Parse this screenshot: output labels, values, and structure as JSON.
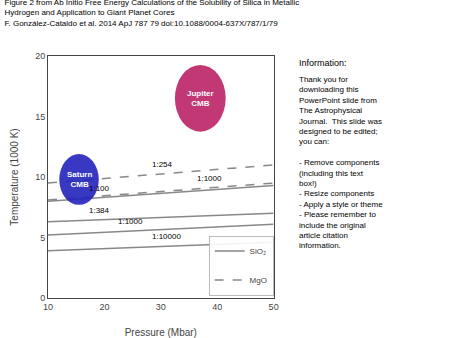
{
  "chart_data": {
    "type": "line",
    "title": "Figure 2 from Ab Initio Free Energy Calculations of the Solubility of Silica in Metallic Hydrogen and Application to Giant Planet Cores",
    "subtitle": "F. González-Cataldo et al. 2014 ApJ 787 79 doi:10.1088/0004-637X/787/1/79",
    "x_label": "Pressure (Mbar)",
    "y_label": "Temperature (1000 K)",
    "x": [
      10,
      50
    ],
    "series": [
      {
        "name": "SiO₂",
        "color": "#888888",
        "line_style": "solid",
        "values": [
          8.0,
          9.3
        ]
      },
      {
        "name": "SiO₂",
        "color": "#888888",
        "line_style": "solid",
        "values": [
          6.3,
          7.0
        ]
      },
      {
        "name": "SiO₂",
        "color": "#888888",
        "line_style": "solid",
        "values": [
          5.2,
          6.1
        ]
      },
      {
        "name": "SiO₂",
        "color": "#888888",
        "line_style": "solid",
        "values": [
          3.9,
          4.6
        ]
      },
      {
        "name": "MgO",
        "color": "#888888",
        "line_style": "dashed",
        "values": [
          9.5,
          11.0
        ]
      },
      {
        "name": "MgO",
        "color": "#888888",
        "line_style": "dashed",
        "values": [
          8.1,
          9.5
        ]
      }
    ],
    "annotations": [
      {
        "text": "1:100",
        "x": 17,
        "y": 8.5275
      },
      {
        "text": "1:384",
        "x": 17,
        "y": 6.7225
      },
      {
        "text": "1:1000",
        "x": 22,
        "y": 5.77
      },
      {
        "text": "1:10000",
        "x": 28,
        "y": 4.515
      },
      {
        "text": "1:254",
        "x": 28,
        "y": 10.475
      },
      {
        "text": "1:1000",
        "x": 36,
        "y": 9.31
      }
    ],
    "ellipses": [
      {
        "label": "Saturn\nCMB",
        "center": [
          15.5,
          9.8
        ],
        "width": 7.0,
        "height": 4.2,
        "color": "#2222bb"
      },
      {
        "label": "Jupiter\nCMB",
        "center": [
          37.0,
          16.5
        ],
        "width": 9.0,
        "height": 5.5,
        "color": "#bb2266"
      }
    ],
    "info_title": "Information:",
    "info_body": "Thank you for\ndownloading this\nPowerPoint slide from\nThe Astrophysical\nJournal.  This slide was\ndesigned to be edited;\nyou can:\n\n- Remove components\n(including this text\nbox!)\n- Resize components\n- Apply a style or theme\n- Please remember to\ninclude the original\narticle citation\ninformation.",
    "xlim": [
      10,
      50
    ],
    "ylim": [
      0,
      20
    ],
    "xticks": [
      10,
      20,
      30,
      40,
      50
    ],
    "yticks": [
      0,
      5,
      10,
      15,
      20
    ],
    "grid": false,
    "legend": "lower right"
  }
}
